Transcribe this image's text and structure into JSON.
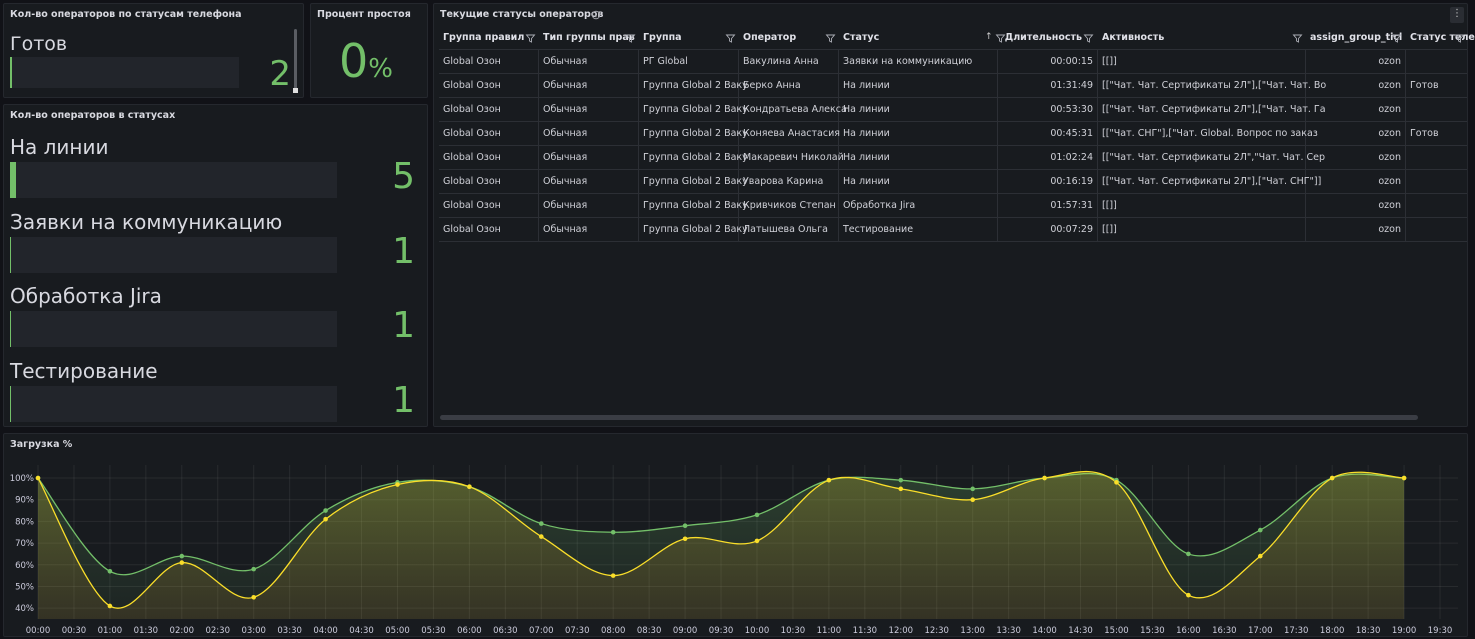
{
  "phone_status_panel": {
    "title": "Кол-во операторов по статусам телефона",
    "label": "Готов",
    "value": 2
  },
  "idle_panel": {
    "title": "Процент простоя",
    "value": 0,
    "unit": "%"
  },
  "status_panel": {
    "title": "Кол-во операторов в статусах",
    "items": [
      {
        "label": "На линии",
        "value": 5
      },
      {
        "label": "Заявки на коммуникацию",
        "value": 1
      },
      {
        "label": "Обработка Jira",
        "value": 1
      },
      {
        "label": "Тестирование",
        "value": 1
      }
    ]
  },
  "table_panel": {
    "title": "Текущие статусы операторов",
    "columns": [
      "Группа правил",
      "Тип группы прав",
      "Группа",
      "Оператор",
      "Статус",
      "Длительность",
      "Активность",
      "assign_group_ticl",
      "Статус теле"
    ],
    "rows": [
      [
        "Global Озон",
        "Обычная",
        "РГ Global",
        "Вакулина Анна",
        "Заявки на коммуникацию",
        "00:00:15",
        "[[]]",
        "ozon",
        null
      ],
      [
        "Global Озон",
        "Обычная",
        "Группа Global 2 Ваку",
        "Берко Анна",
        "На линии",
        "01:31:49",
        "[[\"Чат. Чат. Сертификаты 2Л\"],[\"Чат. Чат. Во",
        "ozon",
        "Готов"
      ],
      [
        "Global Озон",
        "Обычная",
        "Группа Global 2 Ваку",
        "Кондратьева Алекса",
        "На линии",
        "00:53:30",
        "[[\"Чат. Чат. Сертификаты 2Л\"],[\"Чат. Чат. Га",
        "ozon",
        null
      ],
      [
        "Global Озон",
        "Обычная",
        "Группа Global 2 Ваку",
        "Коняева Анастасия",
        "На линии",
        "00:45:31",
        "[[\"Чат. СНГ\"],[\"Чат. Global. Вопрос по заказ",
        "ozon",
        "Готов"
      ],
      [
        "Global Озон",
        "Обычная",
        "Группа Global 2 Ваку",
        "Макаревич Николай",
        "На линии",
        "01:02:24",
        "[[\"Чат. Чат. Сертификаты 2Л\",\"Чат. Чат. Сер",
        "ozon",
        null
      ],
      [
        "Global Озон",
        "Обычная",
        "Группа Global 2 Ваку",
        "Уварова Карина",
        "На линии",
        "00:16:19",
        "[[\"Чат. Чат. Сертификаты 2Л\"],[\"Чат. СНГ\"]]",
        "ozon",
        null
      ],
      [
        "Global Озон",
        "Обычная",
        "Группа Global 2 Ваку",
        "Кривчиков Степан",
        "Обработка Jira",
        "01:57:31",
        "[[]]",
        "ozon",
        null
      ],
      [
        "Global Озон",
        "Обычная",
        "Группа Global 2 Ваку",
        "Латышева Ольга",
        "Тестирование",
        "00:07:29",
        "[[]]",
        "ozon",
        null
      ]
    ]
  },
  "chart_data": {
    "type": "line",
    "title": "Загрузка %",
    "x": [
      "00:00",
      "01:00",
      "02:00",
      "03:00",
      "04:00",
      "05:00",
      "06:00",
      "07:00",
      "08:00",
      "09:00",
      "10:00",
      "11:00",
      "12:00",
      "13:00",
      "14:00",
      "15:00",
      "16:00",
      "17:00",
      "18:00",
      "19:00"
    ],
    "xlim": [
      "00:00",
      "19:45"
    ],
    "xticks": [
      "00:00",
      "00:30",
      "01:00",
      "01:30",
      "02:00",
      "02:30",
      "03:00",
      "03:30",
      "04:00",
      "04:30",
      "05:00",
      "05:30",
      "06:00",
      "06:30",
      "07:00",
      "07:30",
      "08:00",
      "08:30",
      "09:00",
      "09:30",
      "10:00",
      "10:30",
      "11:00",
      "11:30",
      "12:00",
      "12:30",
      "13:00",
      "13:30",
      "14:00",
      "14:30",
      "15:00",
      "15:30",
      "16:00",
      "16:30",
      "17:00",
      "17:30",
      "18:00",
      "18:30",
      "19:00",
      "19:30"
    ],
    "ylim": [
      35,
      106
    ],
    "yticks": [
      {
        "value": 40,
        "label": "40%"
      },
      {
        "value": 50,
        "label": "50%"
      },
      {
        "value": 60,
        "label": "60%"
      },
      {
        "value": 70,
        "label": "70%"
      },
      {
        "value": 80,
        "label": "80%"
      },
      {
        "value": 90,
        "label": "90%"
      },
      {
        "value": 100,
        "label": "100%"
      }
    ],
    "grid": true,
    "series": [
      {
        "color": "#73bf69",
        "values": [
          100,
          57,
          64,
          58,
          85,
          98,
          96,
          79,
          75,
          78,
          83,
          99,
          99,
          95,
          100,
          99,
          65,
          76,
          100,
          100
        ]
      },
      {
        "color": "#fade2a",
        "values": [
          100,
          41,
          61,
          45,
          81,
          97,
          96,
          73,
          55,
          72,
          71,
          99,
          95,
          90,
          100,
          98,
          46,
          64,
          100,
          100
        ]
      }
    ]
  }
}
